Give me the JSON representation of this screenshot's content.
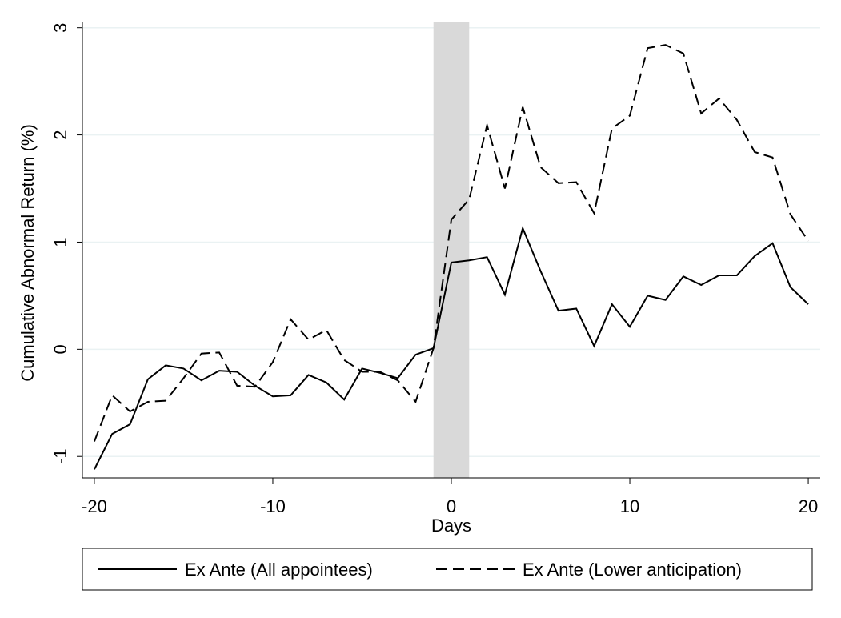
{
  "chart_data": {
    "type": "line",
    "xlabel": "Days",
    "ylabel": "Cumulative Abnormal Return (%)",
    "x": [
      -20,
      -19,
      -18,
      -17,
      -16,
      -15,
      -14,
      -13,
      -12,
      -11,
      -10,
      -9,
      -8,
      -7,
      -6,
      -5,
      -4,
      -3,
      -2,
      -1,
      0,
      1,
      2,
      3,
      4,
      5,
      6,
      7,
      8,
      9,
      10,
      11,
      12,
      13,
      14,
      15,
      16,
      17,
      18,
      19,
      20
    ],
    "series": [
      {
        "name": "Ex Ante (All appointees)",
        "color": "#000000",
        "dash": "solid",
        "values": [
          -1.12,
          -0.79,
          -0.7,
          -0.28,
          -0.15,
          -0.18,
          -0.29,
          -0.2,
          -0.21,
          -0.34,
          -0.44,
          -0.43,
          -0.24,
          -0.31,
          -0.47,
          -0.18,
          -0.22,
          -0.27,
          -0.05,
          0.01,
          0.81,
          0.83,
          0.86,
          0.51,
          1.13,
          0.73,
          0.36,
          0.38,
          0.03,
          0.42,
          0.21,
          0.5,
          0.46,
          0.68,
          0.6,
          0.69,
          0.69,
          0.87,
          0.99,
          0.58,
          0.42
        ]
      },
      {
        "name": "Ex Ante (Lower anticipation)",
        "color": "#000000",
        "dash": "dashed",
        "values": [
          -0.86,
          -0.43,
          -0.58,
          -0.49,
          -0.48,
          -0.27,
          -0.04,
          -0.03,
          -0.34,
          -0.35,
          -0.12,
          0.28,
          0.09,
          0.18,
          -0.1,
          -0.21,
          -0.21,
          -0.29,
          -0.49,
          0.01,
          1.21,
          1.4,
          2.09,
          1.5,
          2.26,
          1.7,
          1.55,
          1.56,
          1.27,
          2.06,
          2.18,
          2.81,
          2.84,
          2.76,
          2.2,
          2.34,
          2.14,
          1.84,
          1.79,
          1.26,
          1.01
        ]
      }
    ],
    "shaded_region": [
      -1,
      1
    ],
    "shade_color": "#d9d9d9",
    "xlim": [
      -20.67,
      20.67
    ],
    "xticks": [
      -20,
      -10,
      0,
      10,
      20
    ],
    "ylim": [
      -1.2,
      3.05
    ],
    "yticks": [
      -1,
      0,
      1,
      2,
      3
    ],
    "grid": true,
    "legend": "bottom"
  }
}
